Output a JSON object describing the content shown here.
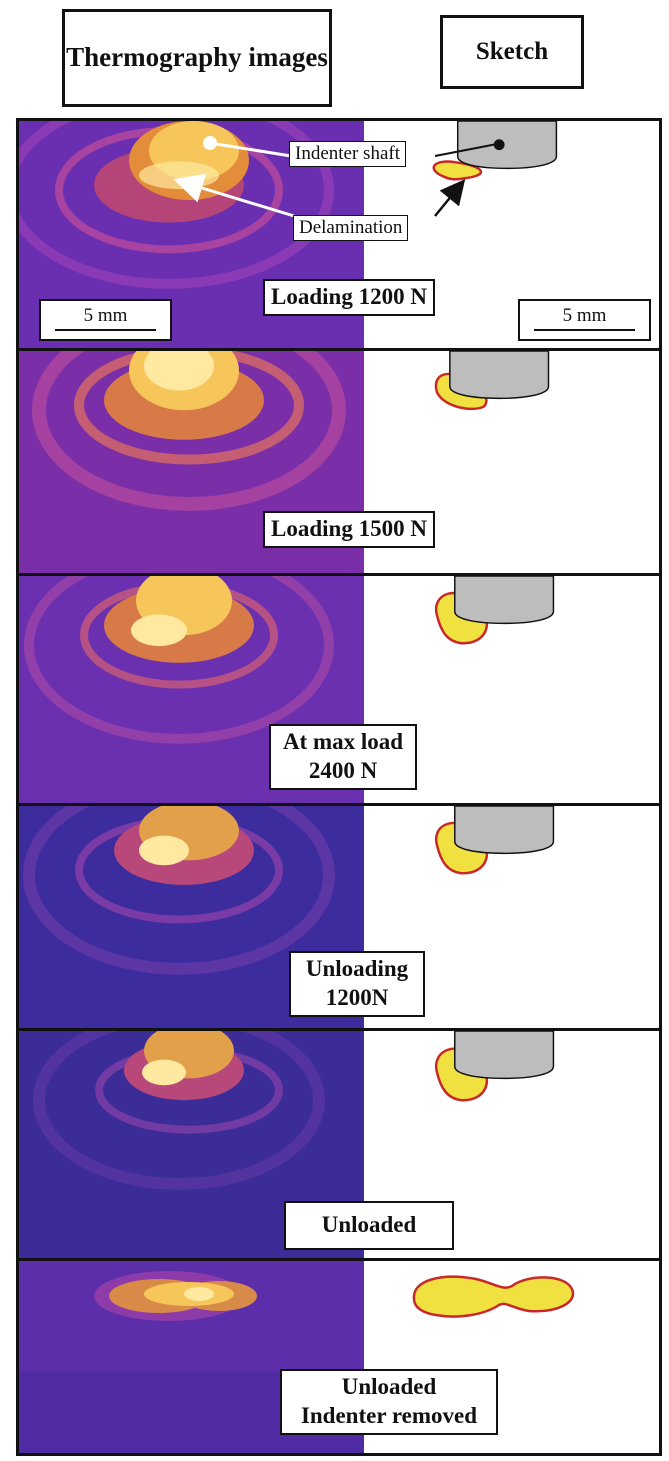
{
  "headers": {
    "thermography": "Thermography images",
    "sketch": "Sketch"
  },
  "annotations": {
    "indenter_shaft": "Indenter shaft",
    "delamination": "Delamination"
  },
  "scale_bar": {
    "left": "5 mm",
    "right": "5 mm"
  },
  "panels": [
    {
      "label": "Loading 1200 N"
    },
    {
      "label": "Loading 1500 N"
    },
    {
      "label": "At max load\n2400 N"
    },
    {
      "label": "Unloading\n1200N"
    },
    {
      "label": "Unloaded"
    },
    {
      "label": "Unloaded\nIndenter removed"
    }
  ],
  "colors": {
    "thermo_background_purple": "#6a2fb0",
    "thermo_background_blue": "#3b2c98",
    "hot_spot": "#f6c65a",
    "indenter_gray": "#bdbdbd",
    "delamination_fill": "#f0e040",
    "delamination_outline": "#c8282a"
  }
}
